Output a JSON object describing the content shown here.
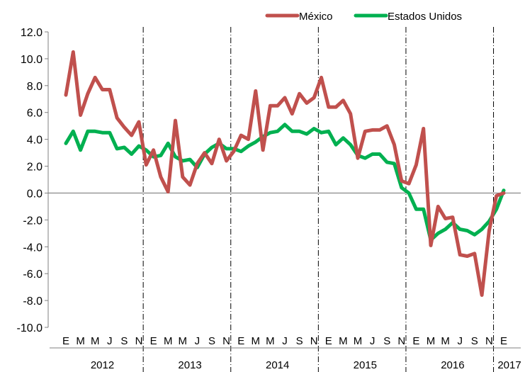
{
  "chart_data": {
    "type": "line",
    "ylim": [
      -10,
      12
    ],
    "yticks": [
      "12.0",
      "10.0",
      "8.0",
      "6.0",
      "4.0",
      "2.0",
      "0.0",
      "-2.0",
      "-4.0",
      "-6.0",
      "-8.0",
      "-10.0"
    ],
    "month_labels": [
      "E",
      "M",
      "M",
      "J",
      "S",
      "N",
      "E",
      "M",
      "M",
      "J",
      "S",
      "N",
      "E",
      "M",
      "M",
      "J",
      "S",
      "N",
      "E",
      "M",
      "M",
      "J",
      "S",
      "N",
      "E",
      "M",
      "M",
      "J",
      "S",
      "N",
      "E"
    ],
    "year_labels": [
      "2012",
      "2013",
      "2014",
      "2015",
      "2016",
      "2017"
    ],
    "legend_position": "top-right",
    "series": [
      {
        "name": "México",
        "color": "#c0504d",
        "values": [
          7.3,
          10.5,
          5.8,
          7.4,
          8.6,
          7.7,
          7.7,
          5.6,
          4.9,
          4.3,
          5.3,
          2.1,
          3.2,
          1.2,
          0.1,
          5.4,
          1.2,
          0.6,
          2.2,
          3.0,
          2.2,
          4.0,
          2.4,
          3.1,
          4.3,
          4.0,
          7.6,
          3.2,
          6.5,
          6.5,
          7.1,
          5.9,
          7.4,
          6.7,
          7.1,
          8.6,
          6.4,
          6.4,
          6.9,
          5.9,
          2.6,
          4.6,
          4.7,
          4.7,
          5.0,
          3.6,
          0.9,
          0.7,
          2.1,
          4.8,
          -3.9,
          -1.0,
          -1.9,
          -1.8,
          -4.6,
          -4.7,
          -4.5,
          -7.6,
          -2.8,
          -0.2,
          0.0
        ]
      },
      {
        "name": "Estados Unidos",
        "color": "#00b050",
        "values": [
          3.7,
          4.6,
          3.2,
          4.6,
          4.6,
          4.5,
          4.5,
          3.3,
          3.4,
          2.9,
          3.5,
          3.2,
          2.7,
          2.8,
          3.7,
          2.7,
          2.4,
          2.5,
          1.9,
          2.9,
          3.4,
          3.7,
          3.3,
          3.3,
          3.1,
          3.5,
          3.8,
          4.2,
          4.5,
          4.6,
          5.1,
          4.6,
          4.6,
          4.4,
          4.8,
          4.5,
          4.6,
          3.6,
          4.1,
          3.6,
          2.8,
          2.6,
          2.9,
          2.9,
          2.3,
          2.2,
          0.4,
          0.0,
          -1.2,
          -1.2,
          -3.5,
          -3.0,
          -2.7,
          -2.2,
          -2.7,
          -2.8,
          -3.1,
          -2.7,
          -2.1,
          -1.2,
          0.2
        ]
      }
    ]
  }
}
